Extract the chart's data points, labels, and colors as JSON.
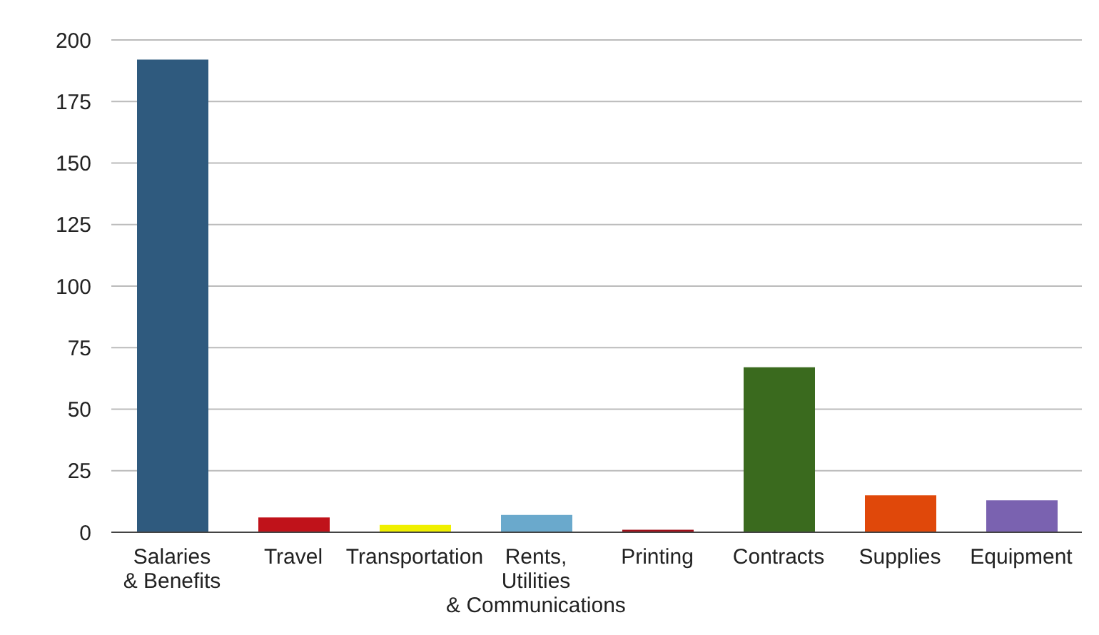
{
  "chart_data": {
    "type": "bar",
    "categories": [
      "Salaries\n& Benefits",
      "Travel",
      "Transportation",
      "Rents,\nUtilities\n& Communications",
      "Printing",
      "Contracts",
      "Supplies",
      "Equipment"
    ],
    "values": [
      192,
      6,
      3,
      7,
      1,
      67,
      15,
      13
    ],
    "colors": [
      "#2f5a7e",
      "#c0121a",
      "#f0f000",
      "#6aa9cc",
      "#a0101a",
      "#3a6a1e",
      "#e0480a",
      "#7a62b0"
    ],
    "ylim": [
      0,
      200
    ],
    "yticks": [
      0,
      25,
      50,
      75,
      100,
      125,
      150,
      175,
      200
    ],
    "grid": "y"
  }
}
